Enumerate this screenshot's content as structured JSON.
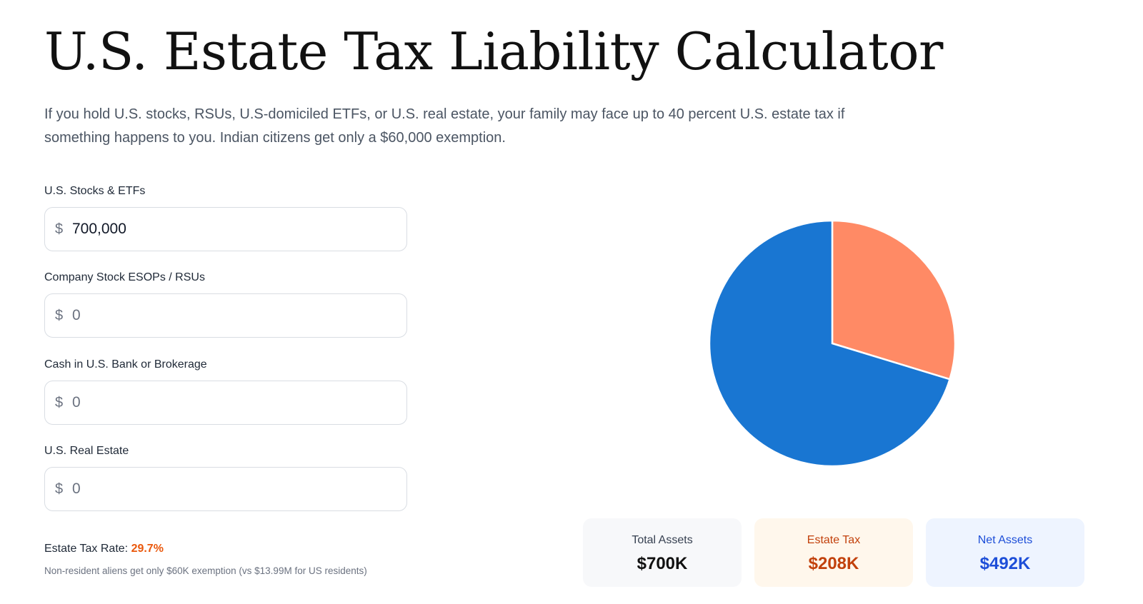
{
  "header": {
    "title": "U.S. Estate Tax Liability Calculator",
    "subtitle": "If you hold U.S. stocks, RSUs, U.S-domiciled ETFs, or U.S. real estate, your family may face up to 40 percent U.S. estate tax if something happens to you. Indian citizens get only a $60,000 exemption."
  },
  "form": {
    "currency_symbol": "$",
    "fields": [
      {
        "label": "U.S. Stocks & ETFs",
        "value": "700,000",
        "placeholder": "0"
      },
      {
        "label": "Company Stock ESOPs / RSUs",
        "value": "",
        "placeholder": "0"
      },
      {
        "label": "Cash in U.S. Bank or Brokerage",
        "value": "",
        "placeholder": "0"
      },
      {
        "label": "U.S. Real Estate",
        "value": "",
        "placeholder": "0"
      }
    ],
    "rate_label": "Estate Tax Rate:",
    "rate_value": "29.7%",
    "note": "Non-resident aliens get only $60K exemption (vs $13.99M for US residents)"
  },
  "chart_data": {
    "type": "pie",
    "slices": [
      {
        "category": "Estate Tax",
        "value": 208,
        "color": "#ff8a65"
      },
      {
        "category": "Net Assets",
        "value": 492,
        "color": "#1976d2"
      }
    ]
  },
  "summary": {
    "total": {
      "label": "Total Assets",
      "value": "$700K"
    },
    "tax": {
      "label": "Estate Tax",
      "value": "$208K"
    },
    "net": {
      "label": "Net Assets",
      "value": "$492K"
    }
  },
  "colors": {
    "accent_orange": "#ea580c",
    "pie_tax": "#ff8a65",
    "pie_net": "#1976d2"
  }
}
